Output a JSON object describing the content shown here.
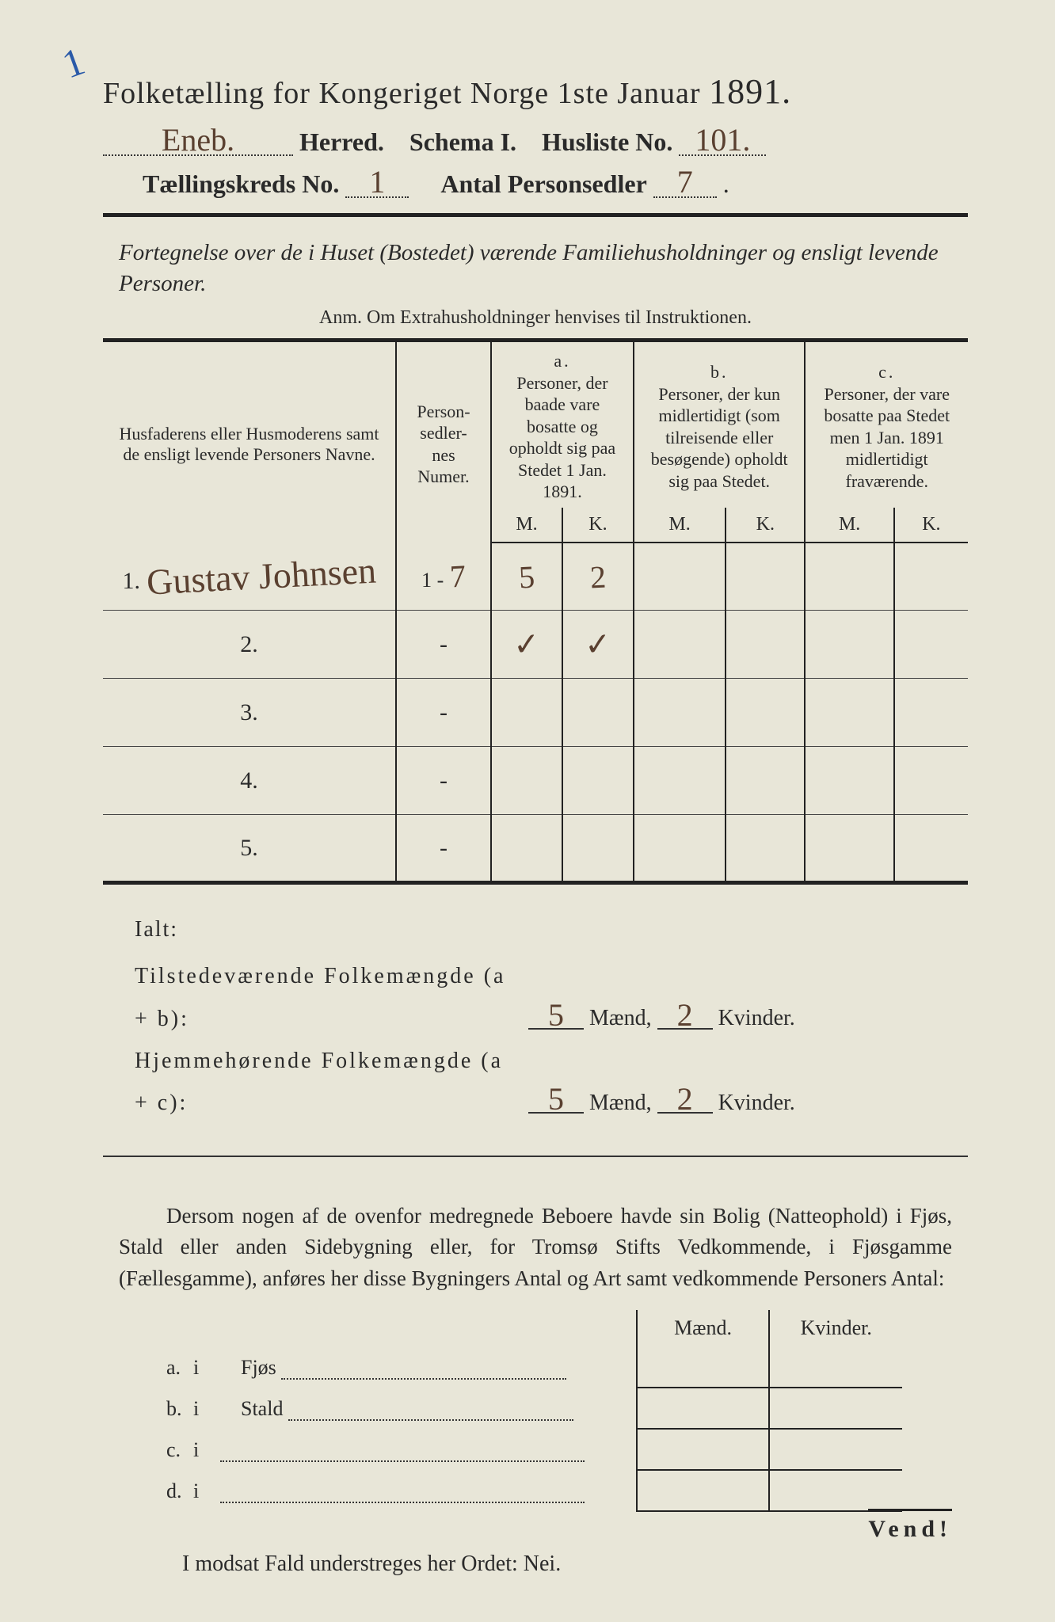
{
  "corner_mark": "1",
  "title": {
    "prefix": "Folketælling for Kongeriget Norge 1ste Januar",
    "year": "1891."
  },
  "header": {
    "herred_value": "Eneb.",
    "herred_label": "Herred.",
    "schema_label": "Schema I.",
    "husliste_label": "Husliste No.",
    "husliste_value": "101.",
    "kreds_label": "Tællingskreds No.",
    "kreds_value": "1",
    "antal_label": "Antal Personsedler",
    "antal_value": "7"
  },
  "subtitle": "Fortegnelse over de i Huset (Bostedet) værende Familiehusholdninger og ensligt levende Personer.",
  "note": "Anm. Om Extrahusholdninger henvises til Instruktionen.",
  "table": {
    "col_name": "Husfaderens eller Husmoderens samt de ensligt levende Personers Navne.",
    "col_num": "Person-\nsedler-\nnes\nNumer.",
    "col_a_tag": "a.",
    "col_a": "Personer, der baade vare bosatte og opholdt sig paa Stedet 1 Jan. 1891.",
    "col_b_tag": "b.",
    "col_b": "Personer, der kun midlertidigt (som tilreisende eller besøgende) opholdt sig paa Stedet.",
    "col_c_tag": "c.",
    "col_c": "Personer, der vare bosatte paa Stedet men 1 Jan. 1891 midlertidigt fraværende.",
    "m": "M.",
    "k": "K.",
    "rows": [
      {
        "n": "1.",
        "name": "Gustav Johnsen",
        "num": "1 - 7",
        "am": "5",
        "ak": "2",
        "bm": "",
        "bk": "",
        "cm": "",
        "ck": ""
      },
      {
        "n": "2.",
        "name": "",
        "num": "-",
        "am": "✓",
        "ak": "✓",
        "bm": "",
        "bk": "",
        "cm": "",
        "ck": ""
      },
      {
        "n": "3.",
        "name": "",
        "num": "-",
        "am": "",
        "ak": "",
        "bm": "",
        "bk": "",
        "cm": "",
        "ck": ""
      },
      {
        "n": "4.",
        "name": "",
        "num": "-",
        "am": "",
        "ak": "",
        "bm": "",
        "bk": "",
        "cm": "",
        "ck": ""
      },
      {
        "n": "5.",
        "name": "",
        "num": "-",
        "am": "",
        "ak": "",
        "bm": "",
        "bk": "",
        "cm": "",
        "ck": ""
      }
    ]
  },
  "ialt": {
    "ialt_label": "Ialt:",
    "tilstede_label": "Tilstedeværende Folkemængde (a + b):",
    "tilstede_m": "5",
    "tilstede_k": "2",
    "hjemme_label": "Hjemmehørende Folkemængde (a + c):",
    "hjemme_m": "5",
    "hjemme_k": "2",
    "maend": "Mænd,",
    "kvinder": "Kvinder."
  },
  "para": "Dersom nogen af de ovenfor medregnede Beboere havde sin Bolig (Natteophold) i Fjøs, Stald eller anden Sidebygning eller, for Tromsø Stifts Vedkommende, i Fjøsgamme (Fællesgamme), anføres her disse Bygningers Antal og Art samt vedkommende Personers Antal:",
  "lower": {
    "maend": "Mænd.",
    "kvinder": "Kvinder.",
    "rows": [
      {
        "tag": "a.",
        "i": "i",
        "label": "Fjøs"
      },
      {
        "tag": "b.",
        "i": "i",
        "label": "Stald"
      },
      {
        "tag": "c.",
        "i": "i",
        "label": ""
      },
      {
        "tag": "d.",
        "i": "i",
        "label": ""
      }
    ]
  },
  "nei_line": "I modsat Fald understreges her Ordet: Nei.",
  "vend": "Vend!",
  "colors": {
    "paper": "#e8e6d8",
    "ink": "#2a2a2a",
    "hand": "#5a4030",
    "blue": "#2a5aa8"
  }
}
